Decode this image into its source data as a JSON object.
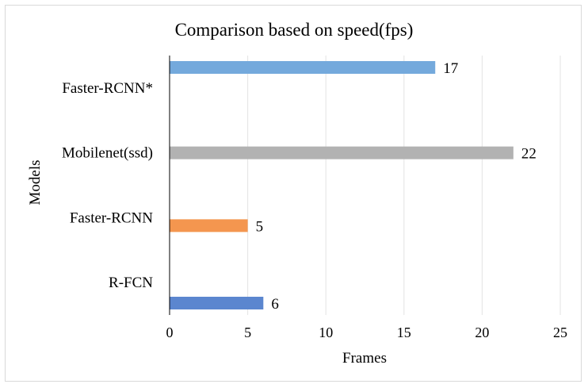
{
  "chart_data": {
    "type": "bar",
    "orientation": "horizontal",
    "title": "Comparison based on speed(fps)",
    "xlabel": "Frames",
    "ylabel": "Models",
    "categories": [
      "Faster-RCNN*",
      "Mobilenet(ssd)",
      "Faster-RCNN",
      "R-FCN"
    ],
    "values": [
      17,
      22,
      5,
      6
    ],
    "colors": [
      "#74a9dc",
      "#b2b2b2",
      "#f4964f",
      "#5b86cf"
    ],
    "bar_offsets": [
      "top",
      "center",
      "center",
      "bottom"
    ],
    "xlim": [
      0,
      25
    ],
    "xticks": [
      0,
      5,
      10,
      15,
      20,
      25
    ],
    "grid": true,
    "legend": "none"
  }
}
